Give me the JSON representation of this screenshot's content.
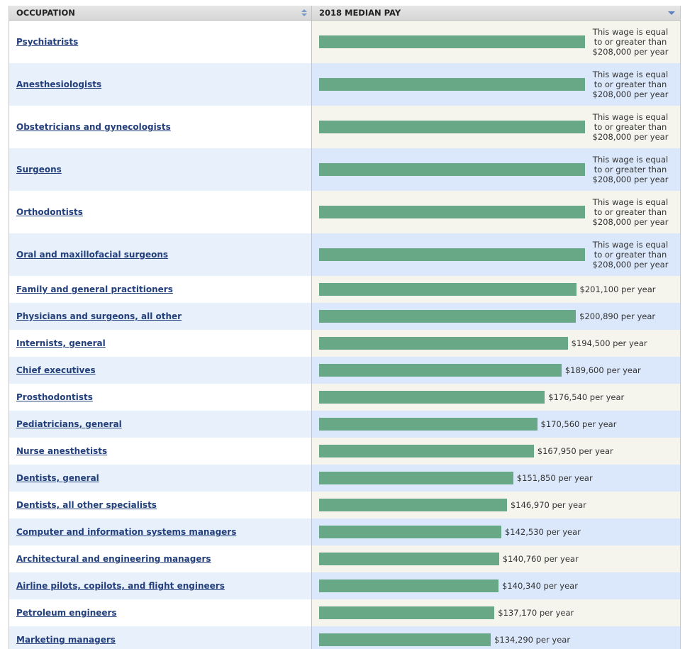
{
  "table": {
    "header": {
      "occupation": "OCCUPATION",
      "pay": "2018 MEDIAN PAY"
    },
    "rows": [
      {
        "occupation": "Psychiatrists",
        "pay": 208000,
        "pay_label": "This wage is equal to or greater than $208,000 per year"
      },
      {
        "occupation": "Anesthesiologists",
        "pay": 208000,
        "pay_label": "This wage is equal to or greater than $208,000 per year"
      },
      {
        "occupation": "Obstetricians and gynecologists",
        "pay": 208000,
        "pay_label": "This wage is equal to or greater than $208,000 per year"
      },
      {
        "occupation": "Surgeons",
        "pay": 208000,
        "pay_label": "This wage is equal to or greater than $208,000 per year"
      },
      {
        "occupation": "Orthodontists",
        "pay": 208000,
        "pay_label": "This wage is equal to or greater than $208,000 per year"
      },
      {
        "occupation": "Oral and maxillofacial surgeons",
        "pay": 208000,
        "pay_label": "This wage is equal to or greater than $208,000 per year"
      },
      {
        "occupation": "Family and general practitioners",
        "pay": 201100,
        "pay_label": "$201,100 per year"
      },
      {
        "occupation": "Physicians and surgeons, all other",
        "pay": 200890,
        "pay_label": "$200,890 per year"
      },
      {
        "occupation": "Internists, general",
        "pay": 194500,
        "pay_label": "$194,500 per year"
      },
      {
        "occupation": "Chief executives",
        "pay": 189600,
        "pay_label": "$189,600 per year"
      },
      {
        "occupation": "Prosthodontists",
        "pay": 176540,
        "pay_label": "$176,540 per year"
      },
      {
        "occupation": "Pediatricians, general",
        "pay": 170560,
        "pay_label": "$170,560 per year"
      },
      {
        "occupation": "Nurse anesthetists",
        "pay": 167950,
        "pay_label": "$167,950 per year"
      },
      {
        "occupation": "Dentists, general",
        "pay": 151850,
        "pay_label": "$151,850 per year"
      },
      {
        "occupation": "Dentists, all other specialists",
        "pay": 146970,
        "pay_label": "$146,970 per year"
      },
      {
        "occupation": "Computer and information systems managers",
        "pay": 142530,
        "pay_label": "$142,530 per year"
      },
      {
        "occupation": "Architectural and engineering managers",
        "pay": 140760,
        "pay_label": "$140,760 per year"
      },
      {
        "occupation": "Airline pilots, copilots, and flight engineers",
        "pay": 140340,
        "pay_label": "$140,340 per year"
      },
      {
        "occupation": "Petroleum engineers",
        "pay": 137170,
        "pay_label": "$137,170 per year"
      },
      {
        "occupation": "Marketing managers",
        "pay": 134290,
        "pay_label": "$134,290 per year"
      }
    ]
  }
}
